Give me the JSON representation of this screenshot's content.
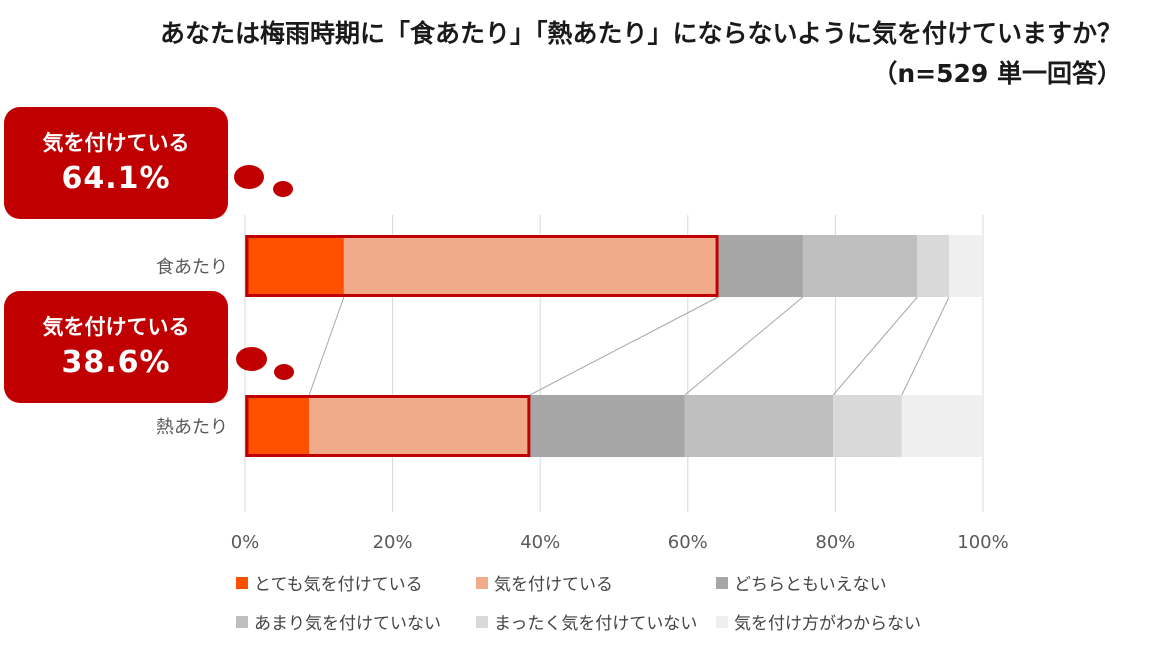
{
  "title": {
    "line1": "あなたは梅雨時期に「食あたり」「熱あたり」にならないように気を付けていますか？",
    "line2": "（n=529 単一回答）"
  },
  "callouts": [
    {
      "label": "気を付けている",
      "value": "64.1%"
    },
    {
      "label": "気を付けている",
      "value": "38.6%"
    }
  ],
  "colors": {
    "accent": "#c00000",
    "series": [
      "#ff5000",
      "#f2ab8a",
      "#a6a6a6",
      "#bfbfbf",
      "#d9d9d9",
      "#efefef"
    ]
  },
  "chart_data": {
    "type": "bar",
    "orientation": "horizontal",
    "stacked": true,
    "title": "あなたは梅雨時期に「食あたり」「熱あたり」にならないように気を付けていますか？",
    "subtitle": "（n=529 単一回答）",
    "categories": [
      "食あたり",
      "熱あたり"
    ],
    "series": [
      {
        "name": "とても気を付けている",
        "values": [
          13.4,
          8.7
        ]
      },
      {
        "name": "気を付けている",
        "values": [
          50.7,
          29.9
        ]
      },
      {
        "name": "どちらともいえない",
        "values": [
          11.5,
          21.0
        ]
      },
      {
        "name": "あまり気を付けていない",
        "values": [
          15.5,
          20.1
        ]
      },
      {
        "name": "まったく気を付けていない",
        "values": [
          4.3,
          9.3
        ]
      },
      {
        "name": "気を付け方がわからない",
        "values": [
          4.6,
          11.0
        ]
      }
    ],
    "xlim": [
      0,
      100
    ],
    "xticks": [
      "0%",
      "20%",
      "40%",
      "60%",
      "80%",
      "100%"
    ],
    "grid": true,
    "legend_position": "bottom"
  }
}
